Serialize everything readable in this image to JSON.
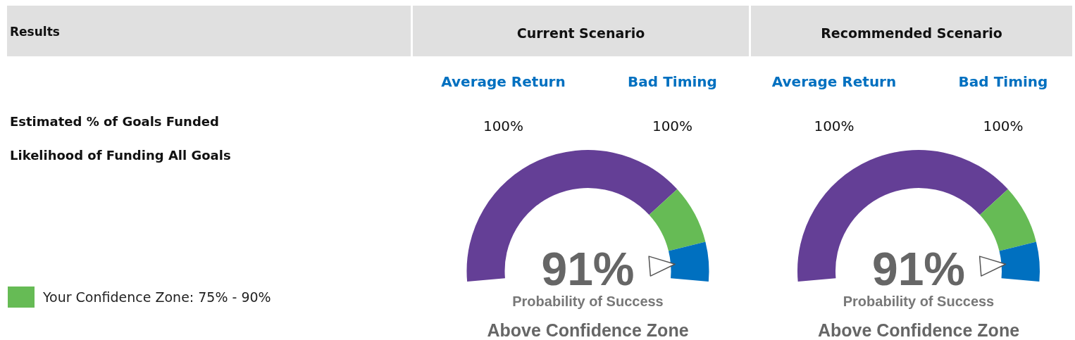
{
  "chart_data": [
    {
      "type": "other",
      "title": "Results",
      "annotations": [
        "Estimated % of Goals Funded",
        "Likelihood of Funding All Goals",
        "Your Confidence Zone: 75% - 90%"
      ]
    },
    {
      "type": "donut",
      "title": "Current Scenario",
      "categories": [
        null,
        null,
        null
      ],
      "values": [
        75,
        15,
        10
      ],
      "colors": [
        "#643f96",
        "#66bb55",
        "#0070c0"
      ],
      "annotations": [
        "Average Return",
        "Bad Timing",
        "100%",
        "100%",
        "91%",
        "Probability of Success",
        "Above Confidence Zone"
      ]
    },
    {
      "type": "donut",
      "title": "Recommended Scenario",
      "categories": [
        null,
        null,
        null
      ],
      "values": [
        75,
        15,
        10
      ],
      "colors": [
        "#643f96",
        "#66bb55",
        "#0070c0"
      ],
      "annotations": [
        "Average Return",
        "Bad Timing",
        "100%",
        "100%",
        "91%",
        "Probability of Success",
        "Above Confidence Zone"
      ]
    }
  ]
}
